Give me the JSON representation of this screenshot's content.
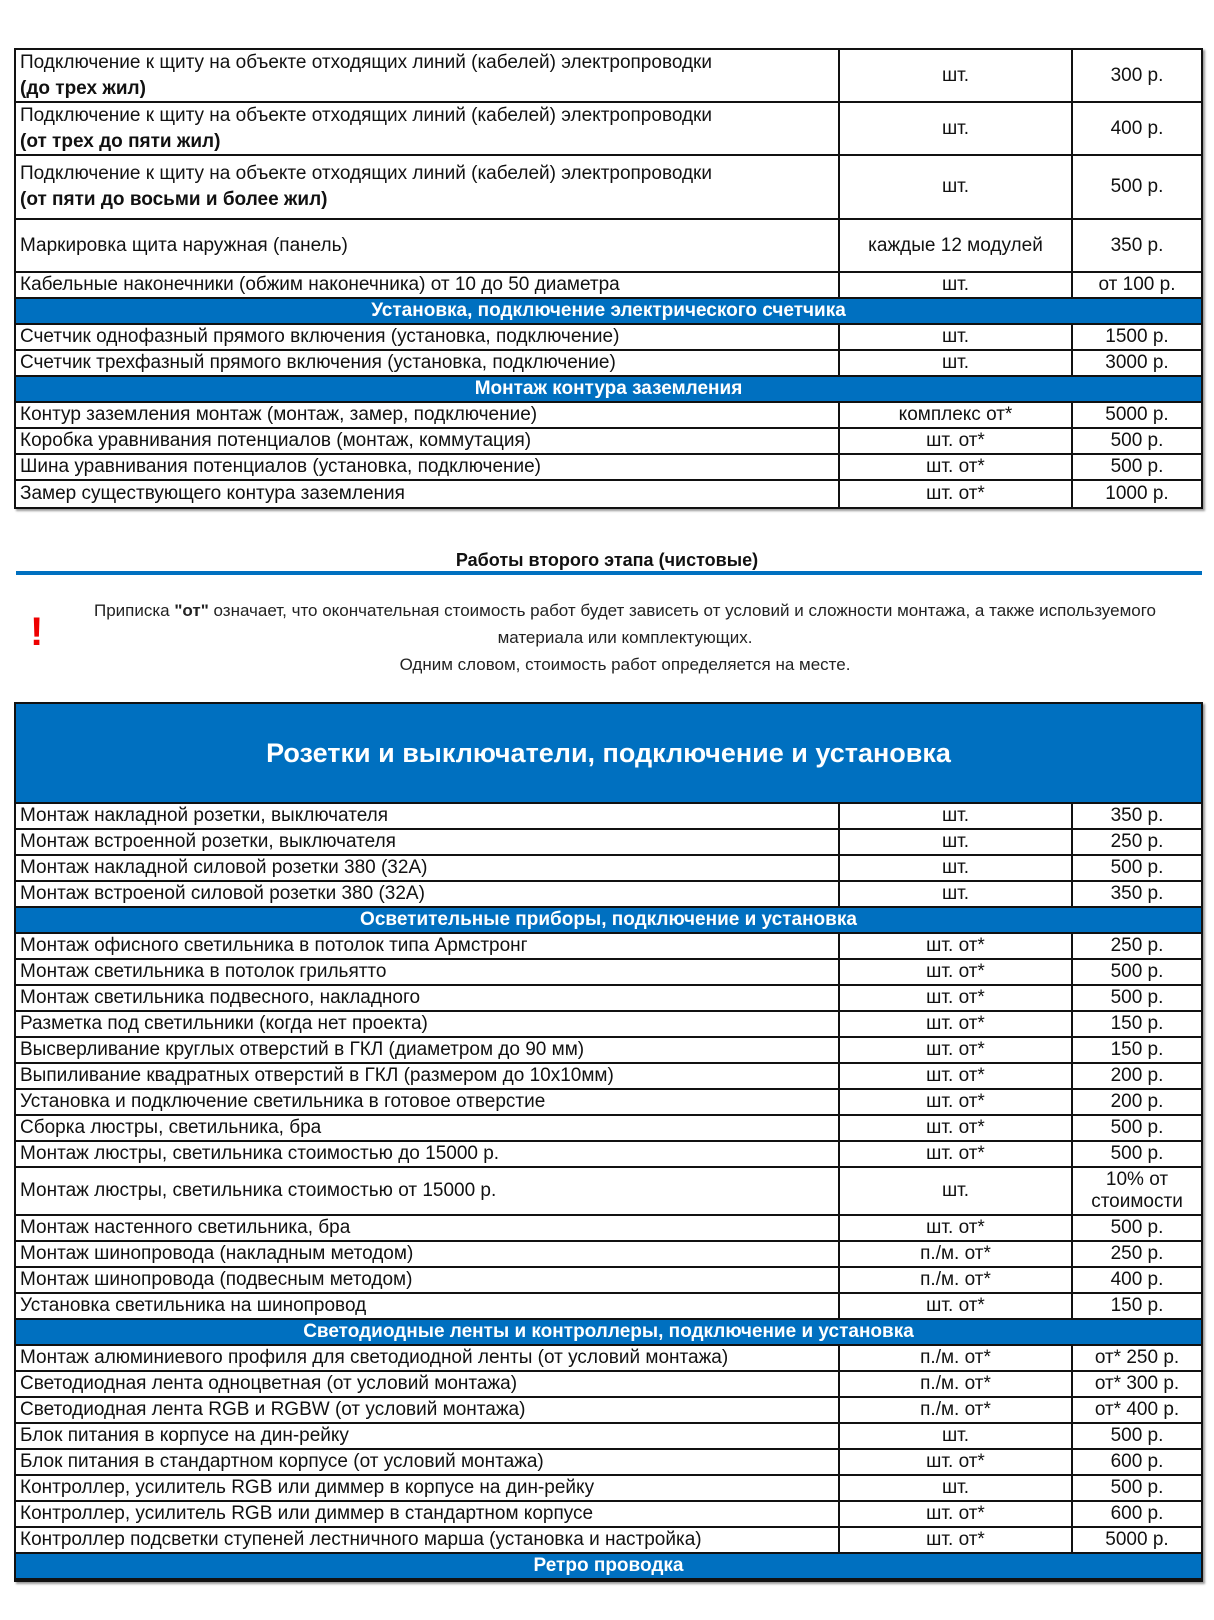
{
  "table1": {
    "rows": [
      {
        "lines": [
          "Подключение к щиту на объекте отходящих линий  (кабелей) электропроводки",
          "(до трех жил)"
        ],
        "unit": "шт.",
        "price": "300 р."
      },
      {
        "lines": [
          "Подключение к щиту на объекте отходящих линий  (кабелей) электропроводки",
          "(от трех до пяти жил)"
        ],
        "unit": "шт.",
        "price": "400 р."
      },
      {
        "lines": [
          "Подключение к щиту на объекте отходящих линий  (кабелей) электропроводки",
          "(от пяти до восьми и более жил)"
        ],
        "unit": "шт.",
        "price": "500 р."
      },
      {
        "lines": [
          "Маркировка щита наружная (панель)"
        ],
        "unit": "каждые 12 модулей",
        "price": "350 р."
      },
      {
        "lines": [
          "Кабельные наконечники (обжим наконечника) от 10 до 50 диаметра"
        ],
        "unit": "шт.",
        "price": "от 100 р."
      },
      {
        "section": "Установка, подключение электрического счетчика"
      },
      {
        "lines": [
          "Счетчик однофазный прямого включения (установка, подключение)"
        ],
        "unit": "шт.",
        "price": "1500 р."
      },
      {
        "lines": [
          "Счетчик трехфазный прямого включения (установка, подключение)"
        ],
        "unit": "шт.",
        "price": "3000 р."
      },
      {
        "section": "Монтаж контура заземления"
      },
      {
        "lines": [
          "Контур заземления монтаж (монтаж, замер, подключение)"
        ],
        "unit": "комплекс от*",
        "price": "5000 р."
      },
      {
        "lines": [
          "Коробка уравнивания потенциалов (монтаж, коммутация)"
        ],
        "unit": "шт. от*",
        "price": "500 р."
      },
      {
        "lines": [
          "Шина уравнивания потенциалов (установка, подключение)"
        ],
        "unit": "шт. от*",
        "price": "500 р."
      },
      {
        "lines": [
          "Замер существующего контура заземления"
        ],
        "unit": "шт. от*",
        "price": "1000 р."
      }
    ]
  },
  "stage_title": "Работы второго этапа (чистовые)",
  "note": {
    "icon": "exclamation-icon",
    "icon_glyph": "!",
    "accent": "#e00000",
    "before": "Приписка ",
    "bold": "\"от\"",
    "after": " означает, что окончательная стоимость работ будет зависеть от условий и сложности монтажа, а также используемого материала или комплектующих.",
    "line3": "Одним словом, стоимость работ определяется на месте."
  },
  "table2": {
    "title": "Розетки и выключатели, подключение и установка",
    "rows": [
      {
        "lines": [
          "Монтаж накладной розетки, выключателя"
        ],
        "unit": "шт.",
        "price": "350 р."
      },
      {
        "lines": [
          "Монтаж встроенной розетки, выключателя"
        ],
        "unit": "шт.",
        "price": "250 р."
      },
      {
        "lines": [
          "Монтаж накладной силовой розетки  380 (32А)"
        ],
        "unit": "шт.",
        "price": "500 р."
      },
      {
        "lines": [
          "Монтаж встроеной силовой розетки  380 (32А)"
        ],
        "unit": "шт.",
        "price": "350 р."
      },
      {
        "section": "Осветительные приборы, подключение и установка"
      },
      {
        "lines": [
          "Монтаж офисного светильника в потолок типа Армстронг"
        ],
        "unit": "шт. от*",
        "price": "250 р."
      },
      {
        "lines": [
          "Монтаж светильника в потолок грильятто"
        ],
        "unit": "шт. от*",
        "price": "500 р."
      },
      {
        "lines": [
          "Монтаж светильника подвесного, накладного"
        ],
        "unit": "шт. от*",
        "price": "500 р."
      },
      {
        "lines": [
          "Разметка  под светильники (когда нет проекта)"
        ],
        "unit": "шт. от*",
        "price": "150 р."
      },
      {
        "lines": [
          "Высверливание круглых отверстий в ГКЛ (диаметром до 90 мм)"
        ],
        "unit": "шт. от*",
        "price": "150 р."
      },
      {
        "lines": [
          "Выпиливание квадратных отверстий в ГКЛ (размером до 10х10мм)"
        ],
        "unit": "шт. от*",
        "price": "200 р."
      },
      {
        "lines": [
          "Установка и подключение светильника  в  готовое отверстие"
        ],
        "unit": "шт. от*",
        "price": "200 р."
      },
      {
        "lines": [
          "Сборка люстры, светильника, бра"
        ],
        "unit": "шт. от*",
        "price": "500 р."
      },
      {
        "lines": [
          "Монтаж люстры, светильника стоимостью до 15000 р."
        ],
        "unit": "шт. от*",
        "price": "500 р."
      },
      {
        "lines": [
          "Монтаж люстры, светильника стоимостью от 15000 р."
        ],
        "unit": "шт.",
        "price": "10% от стоимости",
        "price_lines": [
          "10% от",
          "стоимости"
        ]
      },
      {
        "lines": [
          "Монтаж настенного светильника, бра"
        ],
        "unit": "шт. от*",
        "price": "500 р."
      },
      {
        "lines": [
          "Монтаж шинопровода (накладным методом)"
        ],
        "unit": "п./м. от*",
        "price": "250 р."
      },
      {
        "lines": [
          "Монтаж шинопровода (подвесным методом)"
        ],
        "unit": "п./м. от*",
        "price": "400 р."
      },
      {
        "lines": [
          "Установка светильника на шинопровод"
        ],
        "unit": "шт. от*",
        "price": "150 р."
      },
      {
        "section": "Светодиодные ленты и контроллеры, подключение и установка"
      },
      {
        "lines": [
          "Монтаж алюминиевого профиля для светодиодной ленты (от условий монтажа)"
        ],
        "unit": "п./м. от*",
        "price": "от* 250 р."
      },
      {
        "lines": [
          "Светодиодная лента одноцветная  (от условий монтажа)"
        ],
        "unit": "п./м. от*",
        "price": "от* 300 р."
      },
      {
        "lines": [
          "Светодиодная лента  RGB и RGBW (от условий монтажа)"
        ],
        "unit": "п./м. от*",
        "price": "от* 400 р."
      },
      {
        "lines": [
          "Блок питания в корпусе на дин-рейку"
        ],
        "unit": "шт.",
        "price": "500 р."
      },
      {
        "lines": [
          "Блок питания в стандартном корпусе (от условий монтажа)"
        ],
        "unit": "шт. от*",
        "price": "600 р."
      },
      {
        "lines": [
          "Контроллер, усилитель RGB или диммер в корпусе на дин-рейку"
        ],
        "unit": "шт.",
        "price": "500 р."
      },
      {
        "lines": [
          "Контроллер, усилитель RGB или диммер в стандартном корпусе"
        ],
        "unit": "шт. от*",
        "price": "600 р."
      },
      {
        "lines": [
          "Контроллер подсветки ступеней лестничного марша (установка и настройка)"
        ],
        "unit": "шт. от*",
        "price": "5000 р."
      },
      {
        "section": "Ретро проводка"
      }
    ]
  },
  "colors": {
    "accent_blue": "#0070C0",
    "border": "#111111"
  }
}
